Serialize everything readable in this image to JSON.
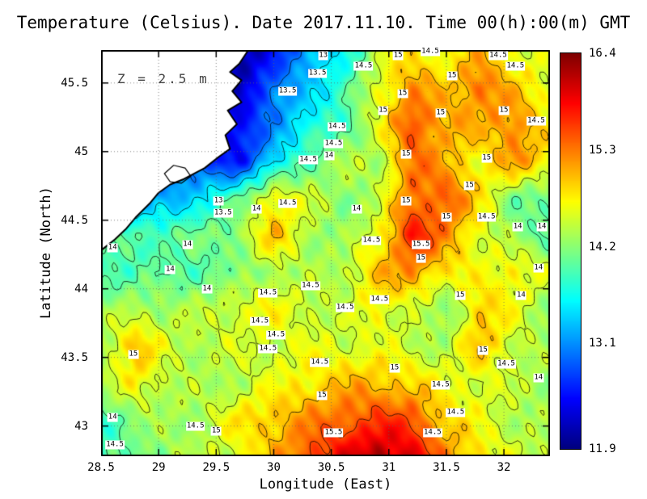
{
  "chart_data": {
    "type": "heatmap",
    "title": "Temperature (Celsius). Date 2017.11.10. Time 00(h):00(m) GMT",
    "xlabel": "Longitude (East)",
    "ylabel": "Latitude (North)",
    "annotation": "Z = 2.5 m",
    "xlim": [
      28.5,
      32.4
    ],
    "ylim": [
      42.78,
      45.74
    ],
    "xtick_values": [
      28.5,
      29,
      29.5,
      30,
      30.5,
      31,
      31.5,
      32
    ],
    "xtick_labels": [
      "28.5",
      "29",
      "29.5",
      "30",
      "30.5",
      "31",
      "31.5",
      "32"
    ],
    "ytick_values": [
      45.5,
      45,
      44.5,
      44,
      43.5,
      43
    ],
    "ytick_labels": [
      "45.5",
      "45",
      "44.5",
      "44",
      "43.5",
      "43"
    ],
    "grid_on": true,
    "legend_position": "right-colorbar",
    "colorbar": {
      "min": 11.9,
      "max": 16.4,
      "tick_values": [
        16.4,
        15.3,
        14.2,
        13.1,
        11.9
      ],
      "tick_labels": [
        "16.4",
        "15.3",
        "14.2",
        "13.1",
        "11.9"
      ],
      "colormap": "jet",
      "color_min": "#00008b",
      "color_max": "#8b0000"
    },
    "contour_levels": [
      13,
      13.5,
      14,
      14.5,
      15,
      15.5
    ],
    "grid": {
      "lons": [
        28.5,
        28.8,
        29.1,
        29.4,
        29.7,
        30.0,
        30.3,
        30.6,
        30.9,
        31.2,
        31.5,
        31.8,
        32.1,
        32.4
      ],
      "lats": [
        45.74,
        45.47,
        45.2,
        44.93,
        44.66,
        44.39,
        44.12,
        43.85,
        43.58,
        43.31,
        43.04,
        42.78
      ],
      "values": [
        [
          12.5,
          12.5,
          12.5,
          12.4,
          11.9,
          12.6,
          13.1,
          13.6,
          14.4,
          14.8,
          14.6,
          15.0,
          14.6,
          14.5
        ],
        [
          12.5,
          12.5,
          12.5,
          12.3,
          12.2,
          12.9,
          13.4,
          13.8,
          14.6,
          15.2,
          14.9,
          15.4,
          14.9,
          14.6
        ],
        [
          12.6,
          12.6,
          12.6,
          12.5,
          12.4,
          13.1,
          13.6,
          13.9,
          14.6,
          15.5,
          15.1,
          15.0,
          15.3,
          14.7
        ],
        [
          12.8,
          12.8,
          12.8,
          12.7,
          12.5,
          13.4,
          14.0,
          14.4,
          14.3,
          15.4,
          15.0,
          14.7,
          15.2,
          14.8
        ],
        [
          13.0,
          13.0,
          13.2,
          13.6,
          14.0,
          14.8,
          14.5,
          14.2,
          14.4,
          15.3,
          15.5,
          14.8,
          14.1,
          14.0
        ],
        [
          13.9,
          14.0,
          14.0,
          14.1,
          14.3,
          15.0,
          14.4,
          14.2,
          14.6,
          15.8,
          15.2,
          14.6,
          14.2,
          14.0
        ],
        [
          14.0,
          13.9,
          14.0,
          14.0,
          14.1,
          14.4,
          14.3,
          14.4,
          15.0,
          15.2,
          14.8,
          14.6,
          14.8,
          14.5
        ],
        [
          14.2,
          14.4,
          14.3,
          14.4,
          14.6,
          14.7,
          14.5,
          14.4,
          14.7,
          14.5,
          14.1,
          15.0,
          14.6,
          14.2
        ],
        [
          14.4,
          15.0,
          14.5,
          14.4,
          14.5,
          14.5,
          14.6,
          14.5,
          14.6,
          14.4,
          14.4,
          15.0,
          14.5,
          14.3
        ],
        [
          14.3,
          14.8,
          14.4,
          14.3,
          14.4,
          14.6,
          14.8,
          15.0,
          15.0,
          14.9,
          14.6,
          14.6,
          14.4,
          14.3
        ],
        [
          13.9,
          14.2,
          14.3,
          14.4,
          14.8,
          15.0,
          15.2,
          15.4,
          15.6,
          15.5,
          14.9,
          14.6,
          14.4,
          14.3
        ],
        [
          13.8,
          14.1,
          14.3,
          14.4,
          14.6,
          15.0,
          15.5,
          15.9,
          16.2,
          16.0,
          15.2,
          14.8,
          14.5,
          14.4
        ]
      ]
    },
    "coastline": [
      [
        29.78,
        45.74
      ],
      [
        29.7,
        45.64
      ],
      [
        29.62,
        45.58
      ],
      [
        29.72,
        45.52
      ],
      [
        29.64,
        45.44
      ],
      [
        29.72,
        45.36
      ],
      [
        29.6,
        45.3
      ],
      [
        29.68,
        45.2
      ],
      [
        29.58,
        45.12
      ],
      [
        29.62,
        45.02
      ],
      [
        29.52,
        44.96
      ],
      [
        29.4,
        44.88
      ],
      [
        29.22,
        44.8
      ],
      [
        29.1,
        44.76
      ],
      [
        29.0,
        44.7
      ],
      [
        28.92,
        44.62
      ],
      [
        28.8,
        44.52
      ],
      [
        28.72,
        44.44
      ],
      [
        28.62,
        44.36
      ],
      [
        28.5,
        44.28
      ]
    ],
    "lakes": [
      [
        [
          29.05,
          44.84
        ],
        [
          29.13,
          44.9
        ],
        [
          29.23,
          44.88
        ],
        [
          29.28,
          44.82
        ],
        [
          29.2,
          44.77
        ],
        [
          29.1,
          44.78
        ]
      ]
    ],
    "contour_labels": [
      [
        30.43,
        45.7,
        "13"
      ],
      [
        30.38,
        45.57,
        "13.5"
      ],
      [
        30.12,
        45.44,
        "13.5"
      ],
      [
        30.78,
        45.62,
        "14.5"
      ],
      [
        31.08,
        45.7,
        "15"
      ],
      [
        31.36,
        45.73,
        "14.5"
      ],
      [
        31.95,
        45.7,
        "14.5"
      ],
      [
        31.55,
        45.55,
        "15"
      ],
      [
        32.1,
        45.62,
        "14.5"
      ],
      [
        31.12,
        45.42,
        "15"
      ],
      [
        30.95,
        45.3,
        "15"
      ],
      [
        31.45,
        45.28,
        "15"
      ],
      [
        32.0,
        45.3,
        "15"
      ],
      [
        32.28,
        45.22,
        "14.5"
      ],
      [
        30.55,
        45.18,
        "14.5"
      ],
      [
        30.52,
        45.06,
        "14.5"
      ],
      [
        30.48,
        44.97,
        "14"
      ],
      [
        30.3,
        44.94,
        "14.5"
      ],
      [
        31.15,
        44.98,
        "15"
      ],
      [
        31.85,
        44.95,
        "15"
      ],
      [
        29.52,
        44.64,
        "13"
      ],
      [
        29.56,
        44.55,
        "13.5"
      ],
      [
        29.85,
        44.58,
        "14"
      ],
      [
        30.12,
        44.62,
        "14.5"
      ],
      [
        30.72,
        44.58,
        "14"
      ],
      [
        31.15,
        44.64,
        "15"
      ],
      [
        31.5,
        44.52,
        "15"
      ],
      [
        31.85,
        44.52,
        "14.5"
      ],
      [
        32.12,
        44.45,
        "14"
      ],
      [
        32.33,
        44.45,
        "14"
      ],
      [
        31.28,
        44.32,
        "15.5"
      ],
      [
        31.28,
        44.22,
        "15"
      ],
      [
        28.6,
        44.3,
        "14"
      ],
      [
        29.25,
        44.32,
        "14"
      ],
      [
        29.1,
        44.14,
        "14"
      ],
      [
        29.42,
        44.0,
        "14"
      ],
      [
        29.95,
        43.97,
        "14.5"
      ],
      [
        30.32,
        44.02,
        "14.5"
      ],
      [
        30.62,
        43.86,
        "14.5"
      ],
      [
        30.92,
        43.92,
        "14.5"
      ],
      [
        29.88,
        43.76,
        "14.5"
      ],
      [
        30.02,
        43.66,
        "14.5"
      ],
      [
        29.95,
        43.56,
        "14.5"
      ],
      [
        31.62,
        43.95,
        "15"
      ],
      [
        32.15,
        43.95,
        "14"
      ],
      [
        32.3,
        44.15,
        "14"
      ],
      [
        30.4,
        43.46,
        "14.5"
      ],
      [
        31.05,
        43.42,
        "15"
      ],
      [
        31.45,
        43.3,
        "14.5"
      ],
      [
        31.82,
        43.55,
        "15"
      ],
      [
        32.02,
        43.45,
        "14.5"
      ],
      [
        28.78,
        43.52,
        "15"
      ],
      [
        28.6,
        43.06,
        "14"
      ],
      [
        29.32,
        43.0,
        "14.5"
      ],
      [
        29.5,
        42.96,
        "15"
      ],
      [
        30.42,
        43.22,
        "15"
      ],
      [
        30.52,
        42.95,
        "15.5"
      ],
      [
        31.38,
        42.95,
        "14.5"
      ],
      [
        31.58,
        43.1,
        "14.5"
      ],
      [
        32.3,
        43.35,
        "14"
      ],
      [
        28.62,
        42.86,
        "14.5"
      ],
      [
        30.85,
        44.35,
        "14.5"
      ],
      [
        31.7,
        44.75,
        "15"
      ]
    ]
  }
}
